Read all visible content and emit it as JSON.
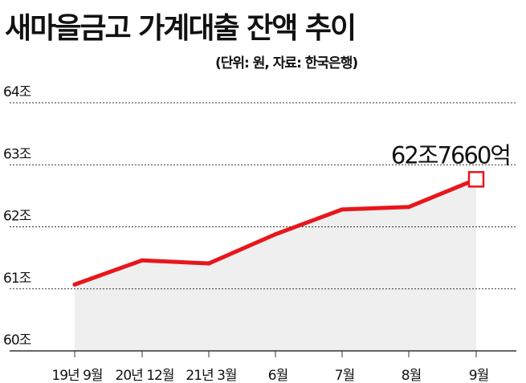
{
  "title": "새마을금고 가계대출 잔액 추이",
  "unit_note": "(단위: 원, 자료: 한국은행)",
  "colors": {
    "line": "#e8161b",
    "area": "#efefef",
    "grid": "#333333",
    "text": "#111111"
  },
  "chart_data": {
    "type": "line",
    "title": "새마을금고 가계대출 잔액 추이",
    "categories": [
      "19년 9월",
      "20년 12월",
      "21년 3월",
      "6월",
      "7월",
      "8월",
      "9월"
    ],
    "values": [
      61.07,
      61.46,
      61.41,
      61.88,
      62.28,
      62.32,
      62.766
    ],
    "ylim": [
      60,
      64
    ],
    "yticks": [
      64,
      63,
      62,
      61,
      60
    ],
    "ytick_labels": [
      "64조",
      "63조",
      "62조",
      "61조",
      "60조"
    ],
    "area_fill": true,
    "grid": true,
    "annotation": {
      "index": 6,
      "text": "62조7660억"
    }
  }
}
